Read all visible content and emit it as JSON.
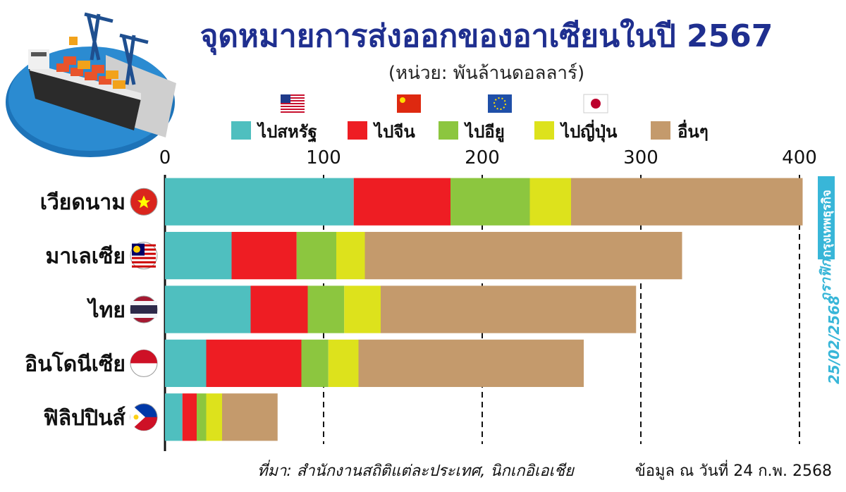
{
  "chart_data": {
    "type": "bar",
    "orientation": "horizontal",
    "stacked": true,
    "title": "จุดหมายการส่งออกของอาเซียนในปี 2567",
    "subtitle": "(หน่วย: พันล้านดอลลาร์)",
    "categories": [
      "เวียดนาม",
      "มาเลเซีย",
      "ไทย",
      "อินโดนีเซีย",
      "ฟิลิปปินส์"
    ],
    "series": [
      {
        "name": "ไปสหรัฐ",
        "color": "#4fbfbf",
        "flag_icon": "us-flag-icon",
        "values": [
          119,
          42,
          54,
          26,
          11
        ]
      },
      {
        "name": "ไปจีน",
        "color": "#ee1d23",
        "flag_icon": "china-flag-icon",
        "values": [
          61,
          41,
          36,
          60,
          9
        ]
      },
      {
        "name": "ไปอียู",
        "color": "#8cc63f",
        "flag_icon": "eu-flag-icon",
        "values": [
          50,
          25,
          23,
          17,
          6
        ]
      },
      {
        "name": "ไปญี่ปุ่น",
        "color": "#dde21c",
        "flag_icon": "japan-flag-icon",
        "values": [
          26,
          18,
          23,
          19,
          10
        ]
      },
      {
        "name": "อื่นๆ",
        "color": "#c49a6c",
        "flag_icon": "",
        "values": [
          146,
          200,
          161,
          142,
          35
        ]
      }
    ],
    "category_flag_icons": [
      "vietnam-flag-icon",
      "malaysia-flag-icon",
      "thailand-flag-icon",
      "indonesia-flag-icon",
      "philippines-flag-icon"
    ],
    "xlim": [
      0,
      400
    ],
    "xticks": [
      "0",
      "100",
      "200",
      "300",
      "400"
    ],
    "grid": "dashed-vertical",
    "legend_position": "top"
  },
  "source": "ที่มา: สำนักงานสถิติแต่ละประเทศ, นิกเกอิเอเชีย",
  "data_as_of": "ข้อมูล ณ วันที่ 24 ก.พ. 2568",
  "side_label": {
    "brand": "กรุงเทพธุรกิจ",
    "graphic": "กราฟิก",
    "date": "25/02/2568"
  },
  "illustration": "cargo-ship-port-icon"
}
